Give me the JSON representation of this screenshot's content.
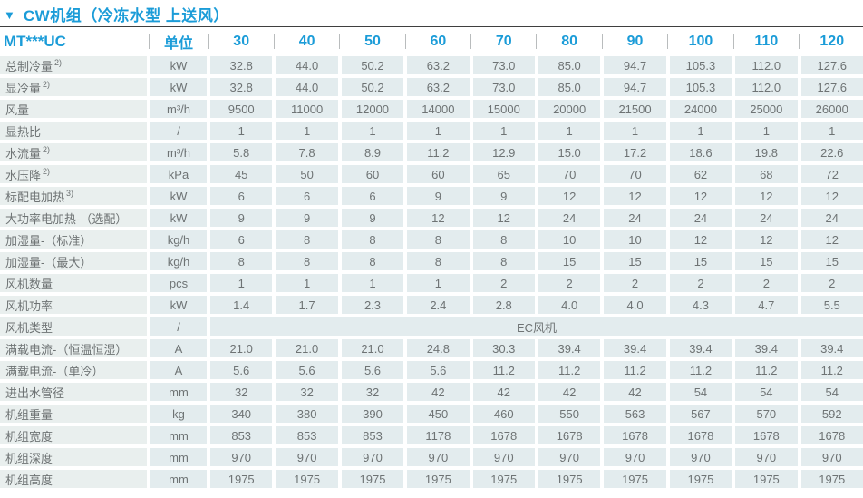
{
  "title": {
    "marker": "▼",
    "text": "CW机组（冷冻水型 上送风）"
  },
  "colors": {
    "accent_blue": "#1b9cd8",
    "label_bg": "#e9efee",
    "cell_bg": "#e3ecee",
    "body_text": "#6e7374",
    "rule": "#3f3f3f"
  },
  "table": {
    "model_header": "MT***UC",
    "unit_header": "单位",
    "capacity_columns": [
      "30",
      "40",
      "50",
      "60",
      "70",
      "80",
      "90",
      "100",
      "110",
      "120"
    ],
    "rows": [
      {
        "label": "总制冷量",
        "sup": "2)",
        "unit": "kW",
        "values": [
          "32.8",
          "44.0",
          "50.2",
          "63.2",
          "73.0",
          "85.0",
          "94.7",
          "105.3",
          "112.0",
          "127.6"
        ]
      },
      {
        "label": "显冷量",
        "sup": "2)",
        "unit": "kW",
        "values": [
          "32.8",
          "44.0",
          "50.2",
          "63.2",
          "73.0",
          "85.0",
          "94.7",
          "105.3",
          "112.0",
          "127.6"
        ]
      },
      {
        "label": "风量",
        "sup": "",
        "unit": "m³/h",
        "values": [
          "9500",
          "11000",
          "12000",
          "14000",
          "15000",
          "20000",
          "21500",
          "24000",
          "25000",
          "26000"
        ]
      },
      {
        "label": "显热比",
        "sup": "",
        "unit": "/",
        "values": [
          "1",
          "1",
          "1",
          "1",
          "1",
          "1",
          "1",
          "1",
          "1",
          "1"
        ]
      },
      {
        "label": "水流量",
        "sup": "2)",
        "unit": "m³/h",
        "values": [
          "5.8",
          "7.8",
          "8.9",
          "11.2",
          "12.9",
          "15.0",
          "17.2",
          "18.6",
          "19.8",
          "22.6"
        ]
      },
      {
        "label": "水压降",
        "sup": "2)",
        "unit": "kPa",
        "values": [
          "45",
          "50",
          "60",
          "60",
          "65",
          "70",
          "70",
          "62",
          "68",
          "72"
        ]
      },
      {
        "label": "标配电加热",
        "sup": "3)",
        "unit": "kW",
        "values": [
          "6",
          "6",
          "6",
          "9",
          "9",
          "12",
          "12",
          "12",
          "12",
          "12"
        ]
      },
      {
        "label": "大功率电加热-（选配）",
        "sup": "",
        "unit": "kW",
        "values": [
          "9",
          "9",
          "9",
          "12",
          "12",
          "24",
          "24",
          "24",
          "24",
          "24"
        ]
      },
      {
        "label": "加湿量-（标准）",
        "sup": "",
        "unit": "kg/h",
        "values": [
          "6",
          "8",
          "8",
          "8",
          "8",
          "10",
          "10",
          "12",
          "12",
          "12"
        ]
      },
      {
        "label": "加湿量-（最大）",
        "sup": "",
        "unit": "kg/h",
        "values": [
          "8",
          "8",
          "8",
          "8",
          "8",
          "15",
          "15",
          "15",
          "15",
          "15"
        ]
      },
      {
        "label": "风机数量",
        "sup": "",
        "unit": "pcs",
        "values": [
          "1",
          "1",
          "1",
          "1",
          "2",
          "2",
          "2",
          "2",
          "2",
          "2"
        ]
      },
      {
        "label": "风机功率",
        "sup": "",
        "unit": "kW",
        "values": [
          "1.4",
          "1.7",
          "2.3",
          "2.4",
          "2.8",
          "4.0",
          "4.0",
          "4.3",
          "4.7",
          "5.5"
        ]
      },
      {
        "label": "风机类型",
        "sup": "",
        "unit": "/",
        "merged_value": "EC风机"
      },
      {
        "label": "满载电流-（恒温恒湿）",
        "sup": "",
        "unit": "A",
        "values": [
          "21.0",
          "21.0",
          "21.0",
          "24.8",
          "30.3",
          "39.4",
          "39.4",
          "39.4",
          "39.4",
          "39.4"
        ]
      },
      {
        "label": "满载电流-（单冷）",
        "sup": "",
        "unit": "A",
        "values": [
          "5.6",
          "5.6",
          "5.6",
          "5.6",
          "11.2",
          "11.2",
          "11.2",
          "11.2",
          "11.2",
          "11.2"
        ]
      },
      {
        "label": "进出水管径",
        "sup": "",
        "unit": "mm",
        "values": [
          "32",
          "32",
          "32",
          "42",
          "42",
          "42",
          "42",
          "54",
          "54",
          "54"
        ]
      },
      {
        "label": "机组重量",
        "sup": "",
        "unit": "kg",
        "values": [
          "340",
          "380",
          "390",
          "450",
          "460",
          "550",
          "563",
          "567",
          "570",
          "592"
        ]
      },
      {
        "label": "机组宽度",
        "sup": "",
        "unit": "mm",
        "values": [
          "853",
          "853",
          "853",
          "1178",
          "1678",
          "1678",
          "1678",
          "1678",
          "1678",
          "1678"
        ]
      },
      {
        "label": "机组深度",
        "sup": "",
        "unit": "mm",
        "values": [
          "970",
          "970",
          "970",
          "970",
          "970",
          "970",
          "970",
          "970",
          "970",
          "970"
        ]
      },
      {
        "label": "机组高度",
        "sup": "",
        "unit": "mm",
        "values": [
          "1975",
          "1975",
          "1975",
          "1975",
          "1975",
          "1975",
          "1975",
          "1975",
          "1975",
          "1975"
        ]
      }
    ]
  }
}
